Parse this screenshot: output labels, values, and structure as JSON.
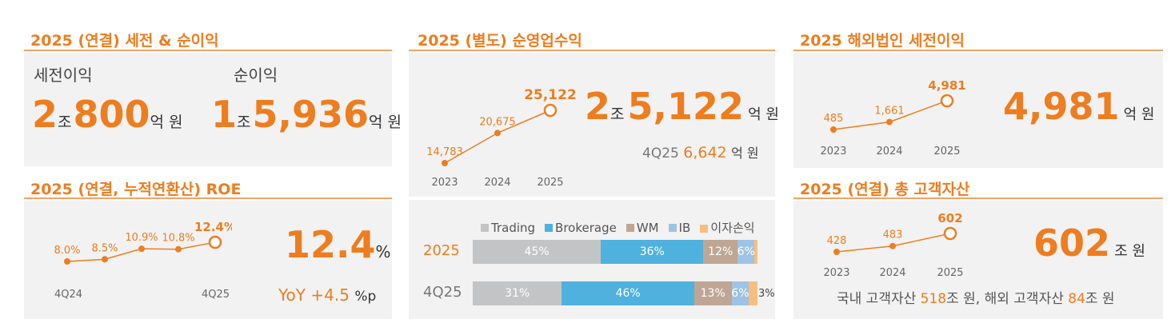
{
  "panel1": {
    "title": "2025 (연결) 세전 & 순이익",
    "pretax_label": "세전이익",
    "net_label": "순이익",
    "pretax_num1": "2",
    "pretax_unit1": "조",
    "pretax_num2": "800",
    "pretax_unit2": "억 원",
    "net_num1": "1",
    "net_unit1": "조",
    "net_num2": "5,936",
    "net_unit2": "억 원"
  },
  "panel2": {
    "title": "2025 (연결, 누적연환산) ROE",
    "points": [
      "8.0%",
      "8.5%",
      "10.9%",
      "10.8%",
      "12.4%"
    ],
    "values": [
      8.0,
      8.5,
      10.9,
      10.8,
      12.4
    ],
    "x_start": "4Q24",
    "x_end": "4Q25",
    "big_value": "12.4",
    "big_unit": "%",
    "yoy_label": "YoY",
    "yoy_value": "+4.5",
    "yoy_unit": "%p"
  },
  "panel3": {
    "title": "2025 (별도) 순영업수익",
    "years": [
      "2023",
      "2024",
      "2025"
    ],
    "labels": [
      "14,783",
      "20,675",
      "25,122"
    ],
    "values": [
      14783,
      20675,
      25122
    ],
    "big_num1": "2",
    "big_unit1": "조",
    "big_num2": "5,122",
    "big_unit2": "억 원",
    "q_label": "4Q25",
    "q_value": "6,642",
    "q_unit": "억 원",
    "legend": [
      {
        "name": "Trading",
        "color": "#c3c4c6"
      },
      {
        "name": "Brokerage",
        "color": "#4eb1de"
      },
      {
        "name": "WM",
        "color": "#bfa694"
      },
      {
        "name": "IB",
        "color": "#9fc3e2"
      },
      {
        "name": "이자손익",
        "color": "#f7be82"
      }
    ],
    "bars": [
      {
        "label": "2025",
        "segments": [
          {
            "value": 45,
            "text": "45%"
          },
          {
            "value": 36,
            "text": "36%"
          },
          {
            "value": 12,
            "text": "12%"
          },
          {
            "value": 6,
            "text": "6%"
          },
          {
            "value": 1,
            "text": ""
          }
        ]
      },
      {
        "label": "4Q25",
        "segments": [
          {
            "value": 31,
            "text": "31%"
          },
          {
            "value": 46,
            "text": "46%"
          },
          {
            "value": 13,
            "text": "13%"
          },
          {
            "value": 6,
            "text": "6%"
          },
          {
            "value": 3,
            "text": "3%"
          }
        ]
      }
    ]
  },
  "panel4": {
    "title": "2025 해외법인 세전이익",
    "years": [
      "2023",
      "2024",
      "2025"
    ],
    "labels": [
      "485",
      "1,661",
      "4,981"
    ],
    "values": [
      485,
      1661,
      4981
    ],
    "big_value": "4,981",
    "big_unit": "억 원"
  },
  "panel5": {
    "title": "2025 (연결) 총 고객자산",
    "years": [
      "2023",
      "2024",
      "2025"
    ],
    "labels": [
      "428",
      "483",
      "602"
    ],
    "values": [
      428,
      483,
      602
    ],
    "big_value": "602",
    "big_unit": "조 원",
    "note_prefix": "국내 고객자산 ",
    "note_v1": "518",
    "note_mid": "조 원, 해외 고객자산 ",
    "note_v2": "84",
    "note_suffix": "조 원"
  },
  "colors": {
    "accent": "#ee7d1f",
    "panel": "#f2f2f2"
  }
}
